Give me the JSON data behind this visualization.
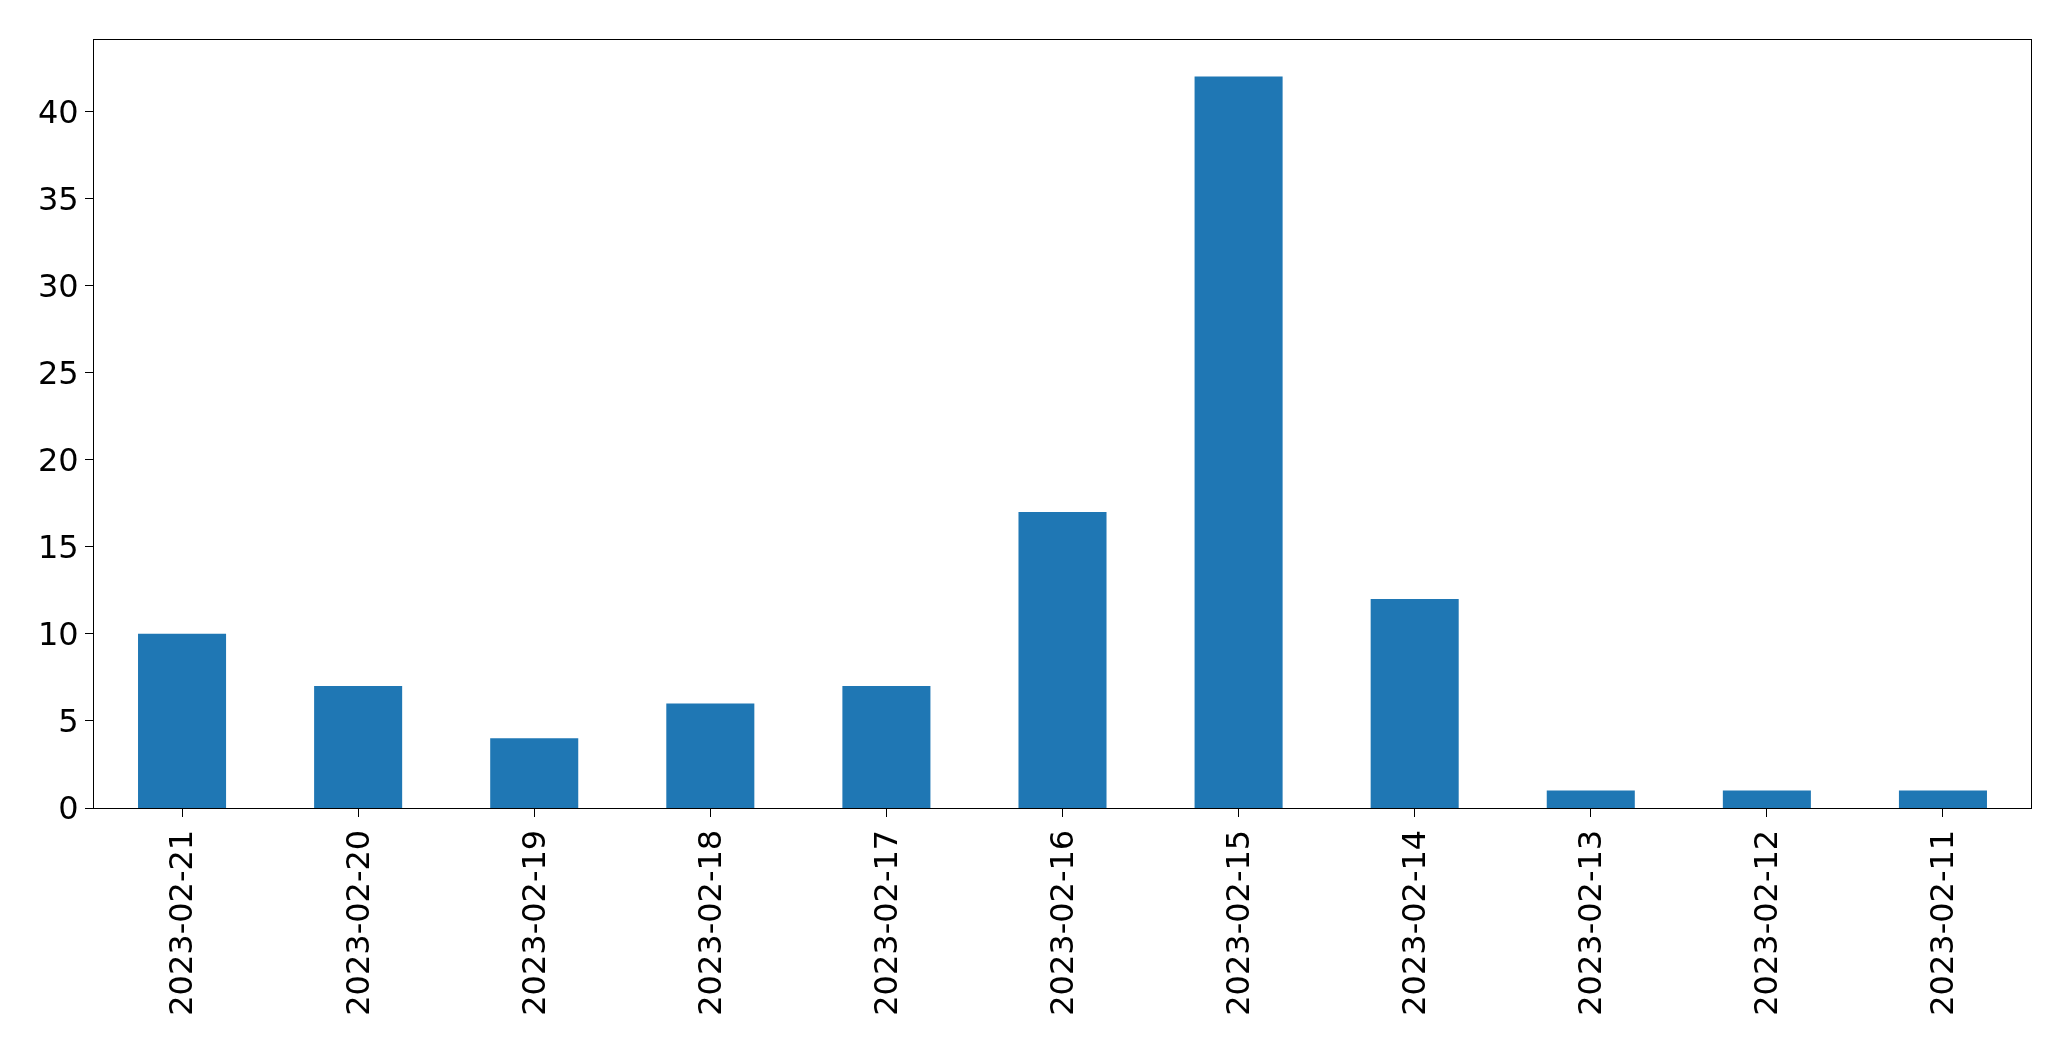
{
  "chart_data": {
    "type": "bar",
    "categories": [
      "2023-02-21",
      "2023-02-20",
      "2023-02-19",
      "2023-02-18",
      "2023-02-17",
      "2023-02-16",
      "2023-02-15",
      "2023-02-14",
      "2023-02-13",
      "2023-02-12",
      "2023-02-11"
    ],
    "values": [
      10,
      7,
      4,
      6,
      7,
      17,
      42,
      12,
      1,
      1,
      1
    ],
    "color": "#1f77b4",
    "ylim": [
      0,
      44.1
    ],
    "yticks": [
      0,
      5,
      10,
      15,
      20,
      25,
      30,
      35,
      40
    ]
  }
}
